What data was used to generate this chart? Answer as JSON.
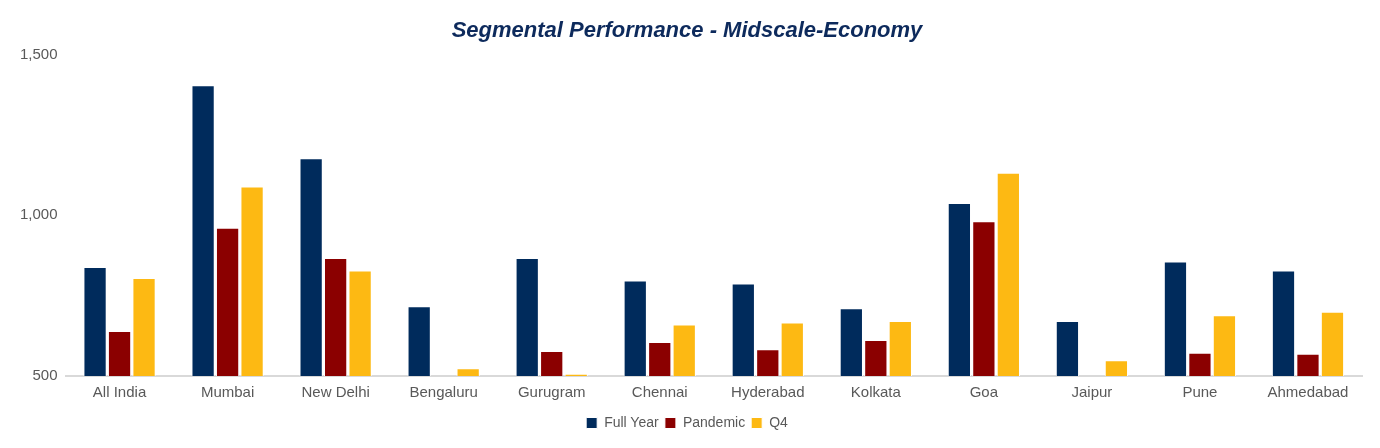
{
  "chart_data": {
    "type": "bar",
    "title": "Segmental Performance - Midscale-Economy",
    "categories": [
      "All India",
      "Mumbai",
      "New Delhi",
      "Bengaluru",
      "Gurugram",
      "Chennai",
      "Hyderabad",
      "Kolkata",
      "Goa",
      "Jaipur",
      "Pune",
      "Ahmedabad"
    ],
    "series": [
      {
        "name": "Full Year",
        "color": "#002b5c",
        "values": [
          839,
          1404,
          1177,
          717,
          867,
          797,
          788,
          711,
          1038,
          671,
          856,
          828
        ]
      },
      {
        "name": "Pandemic",
        "color": "#8b0000",
        "values": [
          640,
          961,
          867,
          null,
          578,
          606,
          583,
          612,
          981,
          null,
          572,
          569
        ]
      },
      {
        "name": "Q4",
        "color": "#fdb913",
        "values": [
          805,
          1089,
          828,
          524,
          507,
          660,
          666,
          671,
          1132,
          549,
          689,
          700
        ]
      }
    ],
    "ylim": [
      500,
      1500
    ],
    "yticks": [
      {
        "value": 500,
        "label": "500"
      },
      {
        "value": 1000,
        "label": "1,000"
      },
      {
        "value": 1500,
        "label": "1,500"
      }
    ],
    "grid": false,
    "legend": "bottom"
  }
}
